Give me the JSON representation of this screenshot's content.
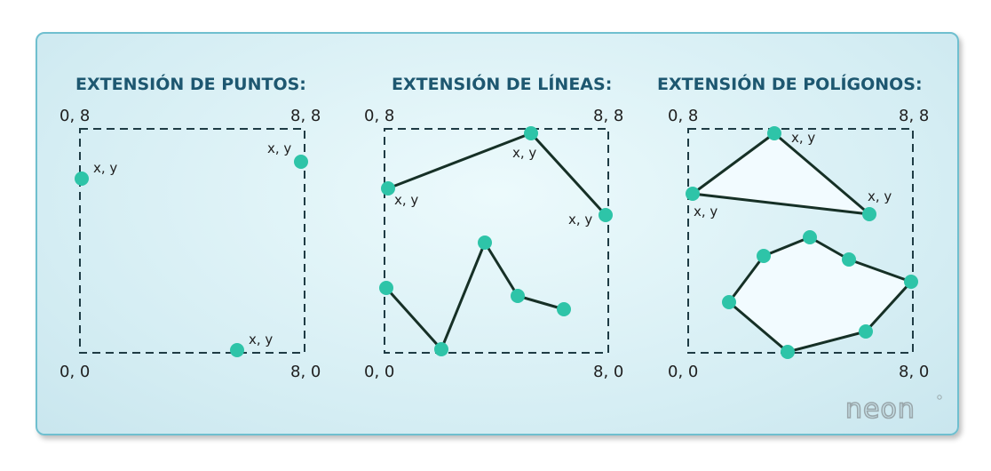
{
  "panels": {
    "points": {
      "title": "EXTENSIÓN DE PUNTOS:",
      "corners": {
        "top_left": "0, 8",
        "top_right": "8, 8",
        "bottom_left": "0, 0",
        "bottom_right": "8, 0"
      },
      "point_label": "x, y"
    },
    "lines": {
      "title": "EXTENSIÓN DE LÍNEAS:",
      "corners": {
        "top_left": "0, 8",
        "top_right": "8, 8",
        "bottom_left": "0, 0",
        "bottom_right": "8, 0"
      },
      "point_label": "x, y"
    },
    "polygons": {
      "title": "EXTENSIÓN DE POLÍGONOS:",
      "corners": {
        "top_left": "0, 8",
        "top_right": "8, 8",
        "bottom_left": "0, 0",
        "bottom_right": "8, 0"
      },
      "point_label": "x, y"
    }
  },
  "logo": {
    "text": "neon"
  },
  "colors": {
    "point": "#2ec4a8",
    "edge": "#163026",
    "title": "#1d5770",
    "frame": "#1e3b44"
  }
}
